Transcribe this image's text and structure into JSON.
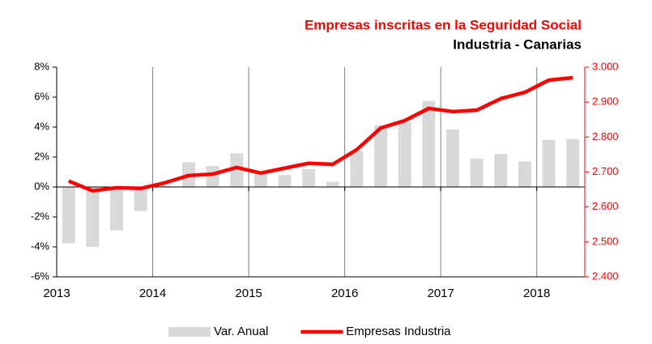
{
  "chart_data": {
    "type": "bar-line",
    "title": "Empresas inscritas en la Seguridad Social",
    "subtitle": "Industria - Canarias",
    "x": [
      2013.125,
      2013.375,
      2013.625,
      2013.875,
      2014.125,
      2014.375,
      2014.625,
      2014.875,
      2015.125,
      2015.375,
      2015.625,
      2015.875,
      2016.125,
      2016.375,
      2016.625,
      2016.875,
      2017.125,
      2017.375,
      2017.625,
      2017.875,
      2018.125,
      2018.375
    ],
    "xlim": [
      2013,
      2018.5
    ],
    "xticks": [
      2013,
      2014,
      2015,
      2016,
      2017,
      2018
    ],
    "ylim": [
      -6,
      8
    ],
    "yticks": [
      {
        "value": -6,
        "label": "-6%"
      },
      {
        "value": -4,
        "label": "-4%"
      },
      {
        "value": -2,
        "label": "-2%"
      },
      {
        "value": 0,
        "label": "0%"
      },
      {
        "value": 2,
        "label": "2%"
      },
      {
        "value": 4,
        "label": "4%"
      },
      {
        "value": 6,
        "label": "6%"
      },
      {
        "value": 8,
        "label": "8%"
      }
    ],
    "y2lim": [
      2400,
      3000
    ],
    "y2ticks": [
      {
        "value": 2400,
        "label": "2.400"
      },
      {
        "value": 2500,
        "label": "2.500"
      },
      {
        "value": 2600,
        "label": "2.600"
      },
      {
        "value": 2700,
        "label": "2.700"
      },
      {
        "value": 2800,
        "label": "2.800"
      },
      {
        "value": 2900,
        "label": "2.900"
      },
      {
        "value": 3000,
        "label": "3.000"
      }
    ],
    "grid": "x",
    "legend": "bottom",
    "series": [
      {
        "name": "Var. Anual",
        "type": "bar",
        "color": "#d9d9d9",
        "values": [
          -3.75,
          -4.0,
          -2.9,
          -1.6,
          0.1,
          1.65,
          1.4,
          2.25,
          0.9,
          0.8,
          1.2,
          0.35,
          2.4,
          4.1,
          4.3,
          5.75,
          3.85,
          1.9,
          2.2,
          1.7,
          3.15,
          3.2
        ]
      },
      {
        "name": "Empresas Industria",
        "type": "line",
        "axis": "y2",
        "color": "#ff0000",
        "values": [
          2674,
          2646,
          2655,
          2653,
          2669,
          2690,
          2694,
          2713,
          2697,
          2711,
          2725,
          2722,
          2764,
          2826,
          2847,
          2882,
          2873,
          2877,
          2910,
          2928,
          2963,
          2970
        ]
      }
    ]
  }
}
